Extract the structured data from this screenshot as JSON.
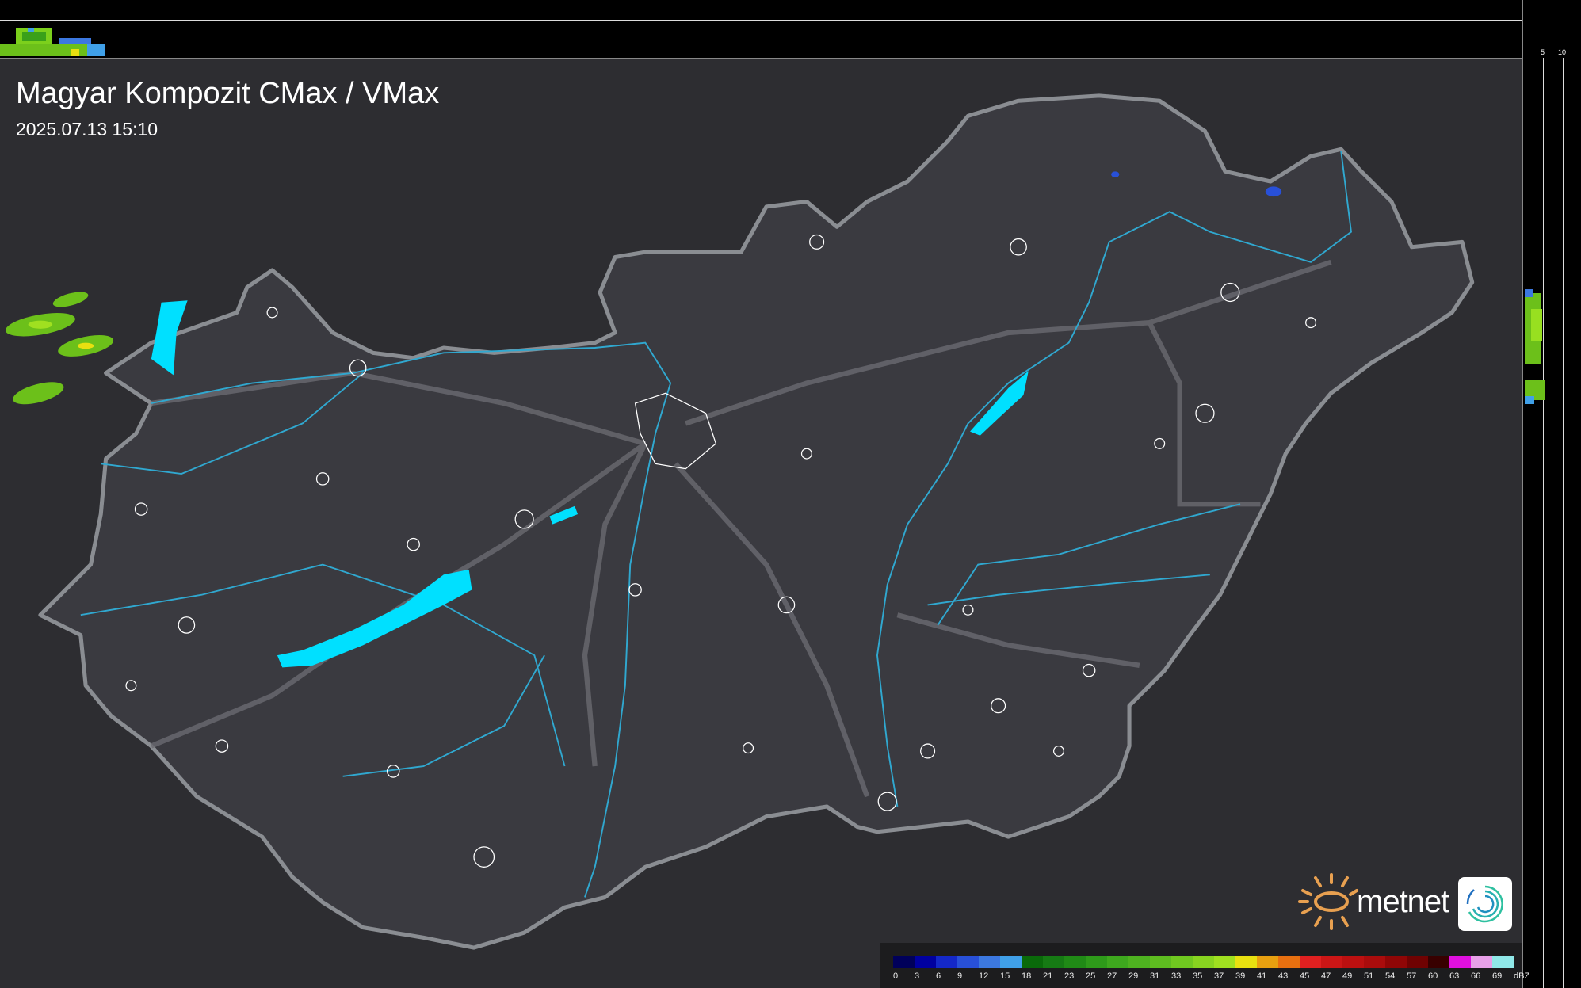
{
  "header": {
    "title": "Magyar Kompozit CMax / VMax",
    "timestamp": "2025.07.13 15:10"
  },
  "profile_axes": {
    "top_ticks": [
      "10",
      "5"
    ],
    "right_ticks": [
      "5",
      "10"
    ]
  },
  "legend": {
    "unit": "dBZ",
    "labels": [
      "0",
      "3",
      "6",
      "9",
      "12",
      "15",
      "18",
      "21",
      "23",
      "25",
      "27",
      "29",
      "31",
      "33",
      "35",
      "37",
      "39",
      "41",
      "43",
      "45",
      "47",
      "49",
      "51",
      "54",
      "57",
      "60",
      "63",
      "66",
      "69"
    ],
    "colors": [
      "#00005a",
      "#0000a0",
      "#1428c8",
      "#2850d8",
      "#3c78e0",
      "#40a0e8",
      "#0a6a0a",
      "#167a14",
      "#208a16",
      "#2e9a1a",
      "#3ea81e",
      "#4eb220",
      "#5ebc20",
      "#70c820",
      "#88d420",
      "#a0e020",
      "#e8e010",
      "#e8a010",
      "#e87010",
      "#e02020",
      "#cc1616",
      "#bc1010",
      "#aa0c0c",
      "#900606",
      "#700202",
      "#380000",
      "#e010e0",
      "#e8a0e8",
      "#90e8e8"
    ]
  },
  "logo": {
    "brand": "metnet",
    "sun_color": "#e8a050",
    "icon_colors": [
      "#2ec0a0",
      "#2070c0"
    ]
  },
  "map_colors": {
    "land": "#38383e",
    "border": "#8a8d92",
    "lakes": "#00e0ff",
    "rivers": "#30a8d0",
    "towns": "#ffffff",
    "roads": "#6a6a70"
  }
}
